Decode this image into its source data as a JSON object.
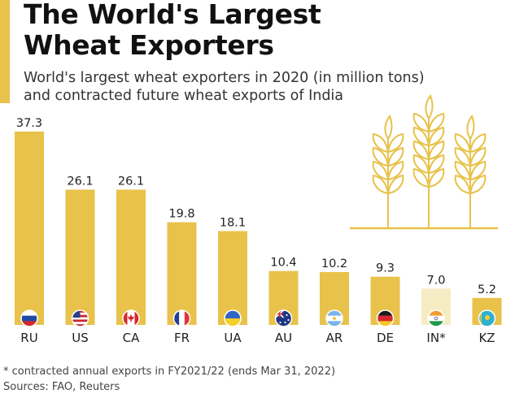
{
  "header": {
    "title_line1": "The World's Largest",
    "title_line2": "Wheat Exporters",
    "subtitle_line1": "World's largest wheat exporters in 2020 (in million tons)",
    "subtitle_line2": "and contracted future wheat exports of India"
  },
  "footer": {
    "note": "* contracted annual exports in FY2021/22 (ends Mar 31, 2022)",
    "sources": "Sources: FAO, Reuters"
  },
  "colors": {
    "bar": "#e8c24a",
    "bar_contracted": "#f6ecc4",
    "accent": "#e8c24a",
    "illustration": "#e8c24a"
  },
  "icons": [
    "wheat-illustration-icon",
    "flag-icons"
  ],
  "chart_data": {
    "type": "bar",
    "categories": [
      "RU",
      "US",
      "CA",
      "FR",
      "UA",
      "AU",
      "AR",
      "DE",
      "IN*",
      "KZ"
    ],
    "values": [
      37.3,
      26.1,
      26.1,
      19.8,
      18.1,
      10.4,
      10.2,
      9.3,
      7.0,
      5.2
    ],
    "value_labels": [
      "37.3",
      "26.1",
      "26.1",
      "19.8",
      "18.1",
      "10.4",
      "10.2",
      "9.3",
      "7.0",
      "5.2"
    ],
    "highlighted": [
      false,
      false,
      false,
      false,
      false,
      false,
      false,
      false,
      true,
      false
    ],
    "unit": "million tons",
    "ylim": [
      0,
      37.3
    ],
    "grid": false,
    "legend": "none"
  }
}
